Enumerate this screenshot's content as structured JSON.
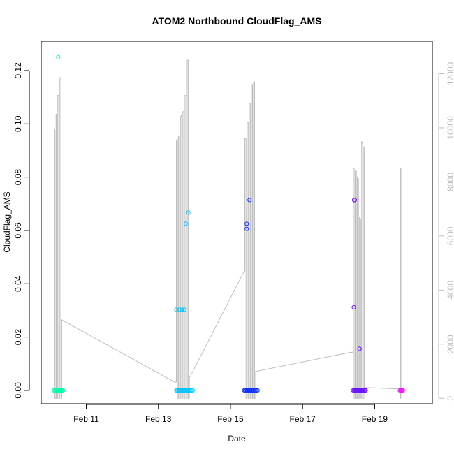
{
  "chart_data": {
    "type": "scatter",
    "title": "ATOM2 Northbound CloudFlag_AMS",
    "xlabel": "Date",
    "ylabel": "CloudFlag_AMS",
    "y2label": "",
    "x_range_days": [
      9.75,
      20.6
    ],
    "x_ticks": [
      {
        "day": 11,
        "label": "Feb 11"
      },
      {
        "day": 13,
        "label": "Feb 13"
      },
      {
        "day": 15,
        "label": "Feb 15"
      },
      {
        "day": 17,
        "label": "Feb 17"
      },
      {
        "day": 19,
        "label": "Feb 19"
      }
    ],
    "ylim": [
      -0.005,
      0.131
    ],
    "y_ticks": [
      {
        "value": 0,
        "label": "0.00"
      },
      {
        "value": 0.02,
        "label": "0.02"
      },
      {
        "value": 0.04,
        "label": "0.04"
      },
      {
        "value": 0.06,
        "label": "0.06"
      },
      {
        "value": 0.08,
        "label": "0.08"
      },
      {
        "value": 0.1,
        "label": "0.10"
      },
      {
        "value": 0.12,
        "label": "0.12"
      }
    ],
    "y2lim": [
      -200,
      13200
    ],
    "y2_ticks": [
      {
        "value": 0,
        "label": "0"
      },
      {
        "value": 2000,
        "label": "2000"
      },
      {
        "value": 4000,
        "label": "4000"
      },
      {
        "value": 6000,
        "label": "6000"
      },
      {
        "value": 8000,
        "label": "8000"
      },
      {
        "value": 10000,
        "label": "10000"
      },
      {
        "value": 12000,
        "label": "12000"
      }
    ],
    "grid": false,
    "legend": "none",
    "series": [
      {
        "color": "#00ffa8",
        "day_range": [
          10.1,
          10.35
        ],
        "nonzero_points": [
          {
            "day": 10.22,
            "value": 0.125
          }
        ]
      },
      {
        "color": "#00c8ff",
        "day_range": [
          13.5,
          13.95
        ],
        "nonzero_points": [
          {
            "day": 13.5,
            "value": 0.0303
          },
          {
            "day": 13.58,
            "value": 0.0303
          },
          {
            "day": 13.65,
            "value": 0.0303
          },
          {
            "day": 13.72,
            "value": 0.0303
          },
          {
            "day": 13.76,
            "value": 0.0625
          },
          {
            "day": 13.83,
            "value": 0.0667
          }
        ]
      },
      {
        "color": "#1030ff",
        "day_range": [
          15.38,
          15.75
        ],
        "nonzero_points": [
          {
            "day": 15.45,
            "value": 0.0625
          },
          {
            "day": 15.45,
            "value": 0.0606
          },
          {
            "day": 15.53,
            "value": 0.0714
          }
        ]
      },
      {
        "color": "#6a10ff",
        "day_range": [
          18.4,
          18.75
        ],
        "nonzero_points": [
          {
            "day": 18.43,
            "value": 0.0714
          },
          {
            "day": 18.45,
            "value": 0.0714
          },
          {
            "day": 18.42,
            "value": 0.0312
          },
          {
            "day": 18.58,
            "value": 0.0156
          }
        ]
      },
      {
        "color": "#ff00ff",
        "day_range": [
          19.7,
          19.78
        ],
        "nonzero_points": []
      }
    ],
    "secondary_line": {
      "color": "#bdbdbd",
      "points": [
        [
          10.1,
          10000
        ],
        [
          10.13,
          9900
        ],
        [
          10.13,
          0
        ],
        [
          10.16,
          0
        ],
        [
          10.16,
          10500
        ],
        [
          10.18,
          10500
        ],
        [
          10.18,
          0
        ],
        [
          10.21,
          0
        ],
        [
          10.21,
          11200
        ],
        [
          10.24,
          11200
        ],
        [
          10.24,
          0
        ],
        [
          10.27,
          0
        ],
        [
          10.27,
          11800
        ],
        [
          10.3,
          11900
        ],
        [
          10.3,
          0
        ],
        [
          10.32,
          0
        ],
        [
          10.32,
          2900
        ],
        [
          13.45,
          600
        ],
        [
          13.5,
          600
        ],
        [
          13.5,
          9500
        ],
        [
          13.53,
          9600
        ],
        [
          13.53,
          0
        ],
        [
          13.56,
          0
        ],
        [
          13.56,
          9700
        ],
        [
          13.59,
          9700
        ],
        [
          13.59,
          0
        ],
        [
          13.62,
          0
        ],
        [
          13.62,
          10400
        ],
        [
          13.65,
          10500
        ],
        [
          13.65,
          0
        ],
        [
          13.68,
          0
        ],
        [
          13.68,
          10600
        ],
        [
          13.71,
          10600
        ],
        [
          13.71,
          0
        ],
        [
          13.74,
          0
        ],
        [
          13.74,
          11200
        ],
        [
          13.77,
          11200
        ],
        [
          13.77,
          0
        ],
        [
          13.8,
          0
        ],
        [
          13.8,
          12500
        ],
        [
          13.83,
          12500
        ],
        [
          13.83,
          0
        ],
        [
          13.86,
          0
        ],
        [
          13.86,
          800
        ],
        [
          13.88,
          800
        ],
        [
          15.38,
          4700
        ],
        [
          15.4,
          4700
        ],
        [
          15.4,
          9600
        ],
        [
          15.43,
          9600
        ],
        [
          15.43,
          0
        ],
        [
          15.46,
          0
        ],
        [
          15.46,
          10200
        ],
        [
          15.49,
          10200
        ],
        [
          15.49,
          0
        ],
        [
          15.52,
          0
        ],
        [
          15.52,
          10900
        ],
        [
          15.55,
          10900
        ],
        [
          15.55,
          0
        ],
        [
          15.58,
          0
        ],
        [
          15.58,
          11600
        ],
        [
          15.61,
          11600
        ],
        [
          15.61,
          0
        ],
        [
          15.64,
          0
        ],
        [
          15.64,
          11700
        ],
        [
          15.67,
          11700
        ],
        [
          15.67,
          0
        ],
        [
          15.7,
          0
        ],
        [
          15.7,
          1000
        ],
        [
          15.73,
          1000
        ],
        [
          18.33,
          1700
        ],
        [
          18.4,
          1700
        ],
        [
          18.4,
          8500
        ],
        [
          18.43,
          8500
        ],
        [
          18.43,
          0
        ],
        [
          18.46,
          0
        ],
        [
          18.46,
          8400
        ],
        [
          18.49,
          8400
        ],
        [
          18.49,
          0
        ],
        [
          18.52,
          0
        ],
        [
          18.52,
          8200
        ],
        [
          18.55,
          8100
        ],
        [
          18.55,
          0
        ],
        [
          18.58,
          0
        ],
        [
          18.58,
          6700
        ],
        [
          18.61,
          6600
        ],
        [
          18.61,
          0
        ],
        [
          18.64,
          0
        ],
        [
          18.64,
          9500
        ],
        [
          18.67,
          9400
        ],
        [
          18.67,
          0
        ],
        [
          18.7,
          0
        ],
        [
          18.7,
          9300
        ],
        [
          18.72,
          9300
        ],
        [
          18.72,
          400
        ],
        [
          19.65,
          350
        ],
        [
          19.7,
          350
        ],
        [
          19.7,
          0
        ],
        [
          19.72,
          0
        ],
        [
          19.72,
          8500
        ],
        [
          19.75,
          8500
        ],
        [
          19.75,
          0
        ]
      ]
    }
  }
}
